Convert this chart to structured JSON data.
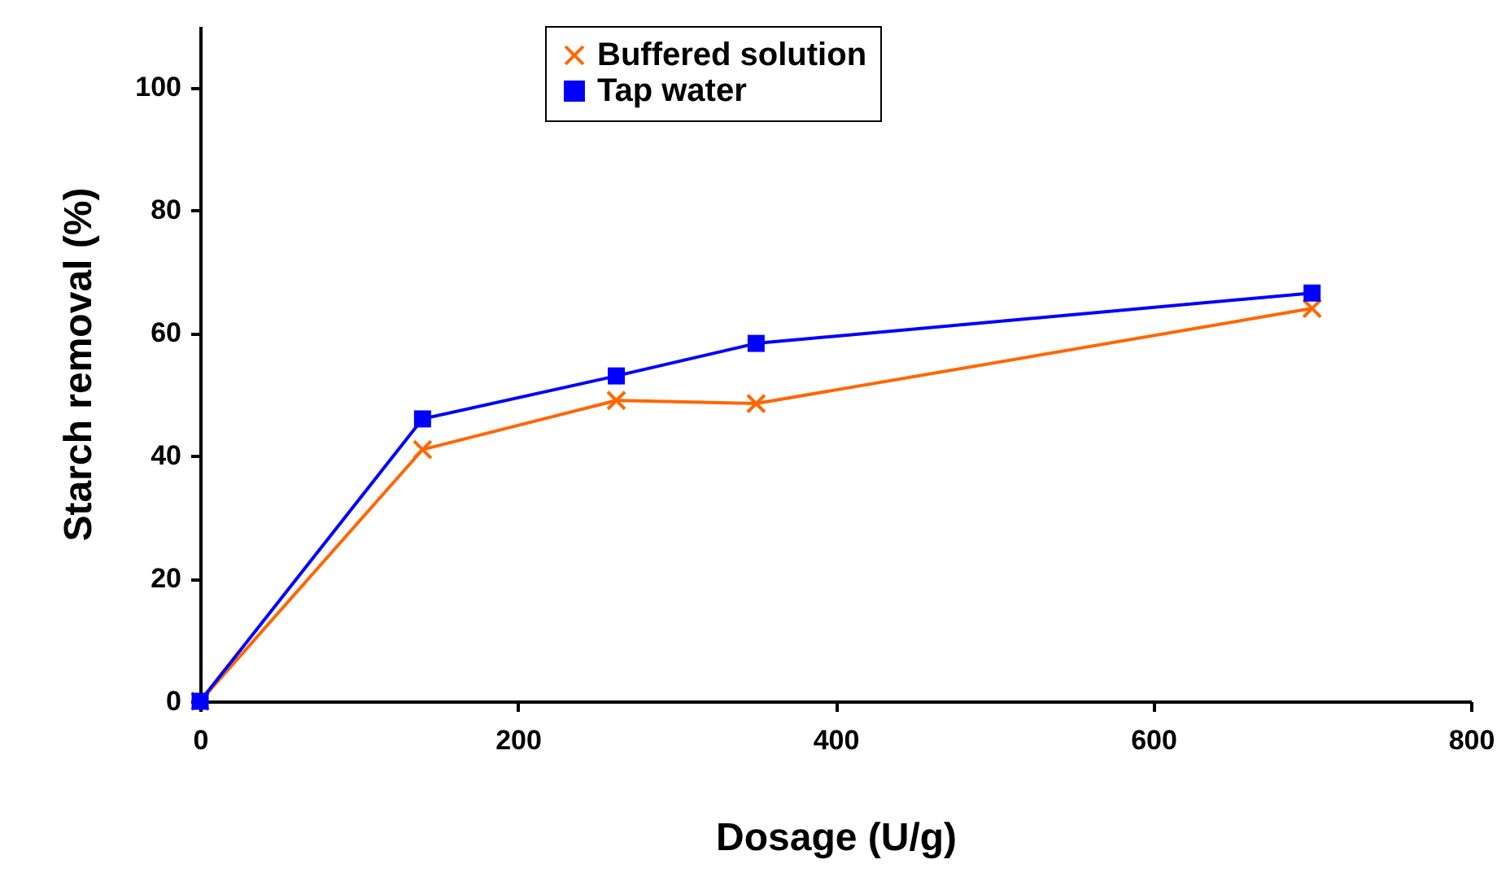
{
  "chart_data": {
    "type": "line",
    "xlabel": "Dosage (U/g)",
    "ylabel": "Starch removal (%)",
    "x": [
      0,
      140,
      262,
      350,
      700
    ],
    "series": [
      {
        "name": "Buffered solution",
        "color": "#ff6600",
        "marker": "cross",
        "values": [
          0,
          41,
          49,
          48.5,
          64
        ]
      },
      {
        "name": "Tap water",
        "color": "#0000ff",
        "marker": "square",
        "values": [
          0,
          46,
          53,
          58.3,
          66.5
        ]
      }
    ],
    "xlim": [
      0,
      800
    ],
    "xticks": [
      0,
      200,
      400,
      600,
      800
    ],
    "ylim": [
      0,
      110
    ],
    "yticks": [
      0,
      20,
      40,
      60,
      80,
      100
    ],
    "grid": false,
    "legend": "top",
    "line_style": "solid"
  }
}
